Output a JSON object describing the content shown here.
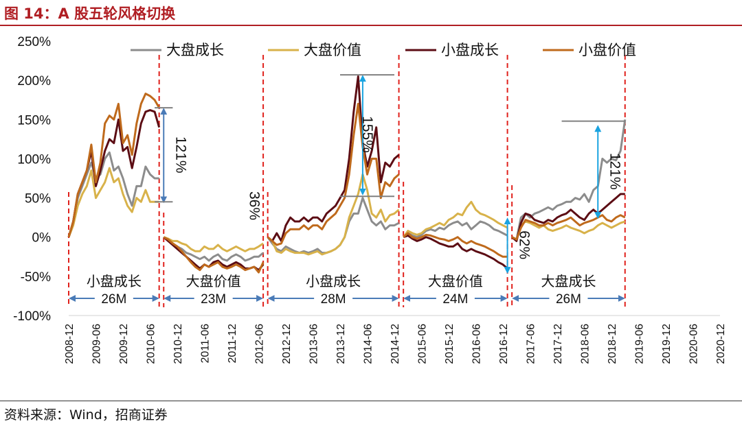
{
  "figure": {
    "title": "图 14：A 股五轮风格切换",
    "source": "资料来源：Wind，招商证券"
  },
  "chart_data": {
    "type": "line",
    "y_ticks": [
      "250%",
      "200%",
      "150%",
      "100%",
      "50%",
      "0%",
      "-50%",
      "-100%"
    ],
    "ylim": [
      -100,
      250
    ],
    "x_ticks": [
      "2008-12",
      "2009-06",
      "2009-12",
      "2010-06",
      "2010-12",
      "2011-06",
      "2011-12",
      "2012-06",
      "2012-12",
      "2013-06",
      "2013-12",
      "2014-06",
      "2014-12",
      "2015-06",
      "2015-12",
      "2016-06",
      "2016-12",
      "2017-06",
      "2017-12",
      "2018-06",
      "2018-12",
      "2019-06",
      "2019-12",
      "2020-06",
      "2020-12"
    ],
    "grid": false,
    "legend_position": "top",
    "series": [
      {
        "name": "大盘成长",
        "color": "#8c8c8c",
        "width": 3
      },
      {
        "name": "大盘价值",
        "color": "#d8b24a",
        "width": 3
      },
      {
        "name": "小盘成长",
        "color": "#5c0d14",
        "width": 3
      },
      {
        "name": "小盘价值",
        "color": "#bf6a1c",
        "width": 3
      }
    ],
    "segments": [
      {
        "phase_label": "小盘成长",
        "duration_label": "26M",
        "spread_label": "121%",
        "values": {
          "大盘成长": [
            0,
            20,
            50,
            65,
            80,
            95,
            75,
            80,
            100,
            108,
            85,
            90,
            75,
            55,
            40,
            65,
            65,
            90,
            80,
            75,
            75
          ],
          "大盘价值": [
            0,
            15,
            40,
            55,
            65,
            85,
            50,
            60,
            70,
            88,
            70,
            75,
            55,
            40,
            32,
            50,
            45,
            60,
            45,
            45,
            45
          ],
          "小盘成长": [
            0,
            20,
            55,
            70,
            85,
            110,
            65,
            85,
            110,
            125,
            120,
            150,
            110,
            115,
            88,
            115,
            145,
            160,
            162,
            160,
            140
          ],
          "小盘价值": [
            0,
            20,
            55,
            70,
            85,
            118,
            70,
            95,
            145,
            155,
            150,
            170,
            120,
            130,
            105,
            145,
            170,
            183,
            180,
            175,
            165
          ]
        }
      },
      {
        "phase_label": "大盘价值",
        "duration_label": "23M",
        "spread_label": "36%",
        "values": {
          "大盘成长": [
            0,
            -5,
            -8,
            -12,
            -15,
            -20,
            -22,
            -25,
            -28,
            -25,
            -30,
            -25,
            -22,
            -28,
            -30,
            -25,
            -22,
            -25,
            -30,
            -28,
            -25,
            -25,
            -20
          ],
          "大盘价值": [
            0,
            -2,
            -5,
            -5,
            -8,
            -10,
            -15,
            -18,
            -18,
            -12,
            -15,
            -15,
            -10,
            -15,
            -18,
            -15,
            -12,
            -15,
            -18,
            -15,
            -15,
            -12,
            -8
          ],
          "小盘成长": [
            0,
            -5,
            -10,
            -15,
            -20,
            -25,
            -30,
            -35,
            -40,
            -35,
            -38,
            -32,
            -30,
            -35,
            -38,
            -35,
            -32,
            -35,
            -40,
            -40,
            -38,
            -42,
            -35
          ],
          "小盘价值": [
            0,
            -3,
            -8,
            -12,
            -18,
            -25,
            -32,
            -38,
            -42,
            -35,
            -38,
            -35,
            -32,
            -38,
            -40,
            -38,
            -35,
            -38,
            -42,
            -40,
            -38,
            -45,
            -32
          ]
        }
      },
      {
        "phase_label": "小盘成长",
        "duration_label": "28M",
        "spread_label": "155%",
        "values": {
          "大盘成长": [
            0,
            -8,
            -15,
            -18,
            -12,
            -15,
            -18,
            -20,
            -18,
            -20,
            -18,
            -15,
            -20,
            -20,
            -18,
            -15,
            -10,
            0,
            20,
            30,
            30,
            50,
            35,
            20,
            15,
            20,
            10,
            15,
            15,
            18
          ],
          "大盘价值": [
            0,
            -5,
            -18,
            -20,
            -15,
            -18,
            -20,
            -20,
            -20,
            -22,
            -20,
            -18,
            -22,
            -20,
            -18,
            -15,
            -10,
            0,
            25,
            40,
            55,
            80,
            60,
            30,
            25,
            35,
            20,
            28,
            30,
            35
          ],
          "小盘成长": [
            0,
            -5,
            5,
            -5,
            15,
            25,
            20,
            20,
            25,
            20,
            25,
            25,
            20,
            30,
            35,
            40,
            50,
            60,
            100,
            160,
            205,
            120,
            90,
            110,
            140,
            70,
            95,
            90,
            100,
            105
          ],
          "小盘价值": [
            0,
            -5,
            -10,
            -8,
            5,
            10,
            10,
            10,
            15,
            10,
            15,
            15,
            10,
            20,
            25,
            30,
            40,
            50,
            80,
            130,
            170,
            115,
            80,
            100,
            100,
            50,
            70,
            65,
            75,
            80
          ]
        }
      },
      {
        "phase_label": "大盘价值",
        "duration_label": "24M",
        "spread_label": "62%",
        "values": {
          "大盘成长": [
            0,
            5,
            2,
            0,
            3,
            8,
            10,
            8,
            12,
            10,
            15,
            18,
            20,
            15,
            18,
            10,
            15,
            20,
            18,
            15,
            10,
            8,
            5,
            2
          ],
          "大盘价值": [
            0,
            8,
            5,
            3,
            5,
            10,
            12,
            15,
            18,
            15,
            22,
            25,
            30,
            28,
            38,
            45,
            35,
            30,
            28,
            25,
            22,
            18,
            15,
            12
          ],
          "小盘成长": [
            0,
            2,
            -2,
            -5,
            -3,
            0,
            -2,
            -5,
            -8,
            -10,
            -12,
            -12,
            -8,
            -15,
            -18,
            -15,
            -18,
            -20,
            -22,
            -25,
            -28,
            -32,
            -35,
            -40
          ],
          "小盘价值": [
            0,
            5,
            0,
            -2,
            0,
            3,
            2,
            0,
            -2,
            -3,
            -5,
            -3,
            0,
            -5,
            -8,
            -5,
            -8,
            -10,
            -12,
            -15,
            -18,
            -22,
            -25,
            -25
          ]
        }
      },
      {
        "phase_label": "大盘成长",
        "duration_label": "26M",
        "spread_label": "121%",
        "values": {
          "大盘成长": [
            0,
            -3,
            25,
            30,
            25,
            30,
            32,
            35,
            38,
            35,
            40,
            42,
            45,
            45,
            50,
            48,
            55,
            45,
            60,
            65,
            100,
            95,
            100,
            98,
            110,
            150
          ],
          "大盘价值": [
            0,
            -3,
            15,
            20,
            18,
            15,
            12,
            15,
            10,
            8,
            10,
            12,
            15,
            12,
            10,
            8,
            5,
            8,
            10,
            15,
            18,
            15,
            12,
            15,
            18,
            20
          ],
          "小盘成长": [
            0,
            -5,
            18,
            30,
            28,
            22,
            20,
            18,
            22,
            20,
            25,
            28,
            30,
            35,
            30,
            25,
            22,
            30,
            35,
            30,
            35,
            40,
            45,
            50,
            55,
            55
          ],
          "小盘价值": [
            0,
            -3,
            12,
            22,
            20,
            18,
            15,
            15,
            18,
            15,
            18,
            20,
            22,
            25,
            20,
            15,
            18,
            20,
            22,
            25,
            28,
            22,
            20,
            25,
            28,
            25
          ]
        }
      }
    ]
  }
}
